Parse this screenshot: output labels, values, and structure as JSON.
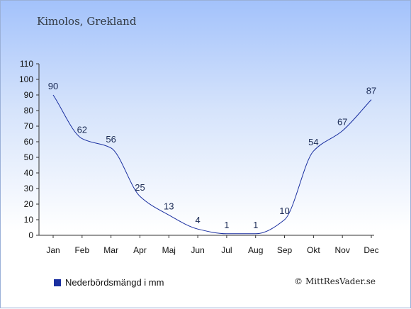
{
  "header": {
    "location": "Kimolos, Grekland"
  },
  "chart_data": {
    "type": "line",
    "categories": [
      "Jan",
      "Feb",
      "Mar",
      "Apr",
      "Maj",
      "Jun",
      "Jul",
      "Aug",
      "Sep",
      "Okt",
      "Nov",
      "Dec"
    ],
    "series": [
      {
        "name": "Nederbördsmängd i mm",
        "values": [
          90,
          62,
          56,
          25,
          13,
          4,
          1,
          1,
          10,
          54,
          67,
          87
        ]
      }
    ],
    "ylim": [
      0,
      110
    ],
    "yticks": [
      0,
      10,
      20,
      30,
      40,
      50,
      60,
      70,
      80,
      90,
      100,
      110
    ],
    "grid": false,
    "line_color": "#1a2fa0",
    "legend_position": "bottom-left"
  },
  "legend": {
    "label": "Nederbördsmängd i mm",
    "swatch_color": "#1a2fa0"
  },
  "footer": {
    "copyright": "© MittResVader.se"
  }
}
